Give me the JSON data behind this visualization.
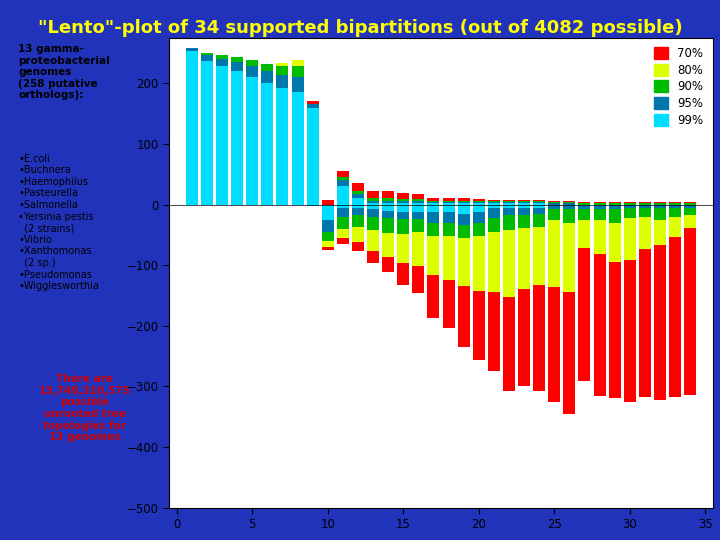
{
  "title": "\"Lento\"-plot of 34 supported bipartitions (out of 4082 possible)",
  "title_color": "#FFFF00",
  "title_fontsize": 13,
  "fig_bg_color": "#2233BB",
  "plot_bg_color": "#FFFFFF",
  "left_top_bg": "#44DDFF",
  "left_bottom_bg": "#FFEEAA",
  "legend_labels": [
    "70%",
    "80%",
    "90%",
    "95%",
    "99%"
  ],
  "legend_colors": [
    "#FF0000",
    "#DDFF00",
    "#00BB00",
    "#0077AA",
    "#00DDFF"
  ],
  "bar_width": 0.8,
  "n_bars": 34,
  "pos_data": [
    [
      0,
      0,
      0,
      5,
      253
    ],
    [
      0,
      0,
      3,
      10,
      237
    ],
    [
      0,
      0,
      6,
      12,
      228
    ],
    [
      0,
      0,
      8,
      15,
      220
    ],
    [
      0,
      0,
      10,
      18,
      210
    ],
    [
      0,
      0,
      12,
      20,
      200
    ],
    [
      0,
      5,
      15,
      22,
      192
    ],
    [
      0,
      10,
      18,
      25,
      185
    ],
    [
      5,
      0,
      0,
      5,
      160
    ],
    [
      8,
      0,
      0,
      0,
      0
    ],
    [
      10,
      0,
      5,
      10,
      30
    ],
    [
      12,
      0,
      5,
      8,
      10
    ],
    [
      12,
      0,
      5,
      3,
      3
    ],
    [
      12,
      0,
      5,
      3,
      3
    ],
    [
      10,
      0,
      3,
      3,
      3
    ],
    [
      8,
      0,
      3,
      3,
      3
    ],
    [
      5,
      0,
      2,
      2,
      2
    ],
    [
      5,
      0,
      2,
      2,
      2
    ],
    [
      4,
      0,
      2,
      2,
      2
    ],
    [
      3,
      0,
      2,
      2,
      2
    ],
    [
      2,
      0,
      2,
      2,
      2
    ],
    [
      2,
      0,
      2,
      2,
      2
    ],
    [
      2,
      0,
      2,
      2,
      2
    ],
    [
      2,
      0,
      2,
      2,
      2
    ],
    [
      2,
      0,
      2,
      2,
      0
    ],
    [
      2,
      0,
      2,
      2,
      0
    ],
    [
      2,
      0,
      2,
      0,
      0
    ],
    [
      2,
      0,
      2,
      0,
      0
    ],
    [
      2,
      0,
      2,
      0,
      0
    ],
    [
      2,
      0,
      2,
      0,
      0
    ],
    [
      2,
      0,
      2,
      0,
      0
    ],
    [
      2,
      0,
      2,
      0,
      0
    ],
    [
      2,
      0,
      2,
      0,
      0
    ],
    [
      2,
      0,
      2,
      0,
      0
    ]
  ],
  "neg_data": [
    [
      0,
      0,
      0,
      0,
      0
    ],
    [
      0,
      0,
      0,
      0,
      0
    ],
    [
      0,
      0,
      0,
      0,
      0
    ],
    [
      0,
      0,
      0,
      0,
      0
    ],
    [
      0,
      0,
      0,
      0,
      0
    ],
    [
      0,
      0,
      0,
      0,
      0
    ],
    [
      0,
      0,
      0,
      0,
      0
    ],
    [
      0,
      0,
      0,
      0,
      0
    ],
    [
      0,
      0,
      0,
      0,
      -3
    ],
    [
      -5,
      -10,
      -15,
      -20,
      -25
    ],
    [
      -10,
      -15,
      -20,
      -15,
      -5
    ],
    [
      -15,
      -25,
      -20,
      -12,
      -5
    ],
    [
      -20,
      -35,
      -22,
      -12,
      -8
    ],
    [
      -25,
      -40,
      -25,
      -12,
      -10
    ],
    [
      -35,
      -48,
      -25,
      -12,
      -12
    ],
    [
      -45,
      -55,
      -22,
      -12,
      -12
    ],
    [
      -70,
      -65,
      -22,
      -18,
      -12
    ],
    [
      -80,
      -72,
      -22,
      -18,
      -12
    ],
    [
      -100,
      -80,
      -22,
      -18,
      -15
    ],
    [
      -115,
      -90,
      -22,
      -18,
      -12
    ],
    [
      -130,
      -100,
      -22,
      -18,
      -5
    ],
    [
      -155,
      -110,
      -25,
      -12,
      -5
    ],
    [
      -160,
      -100,
      -22,
      -12,
      -5
    ],
    [
      -175,
      -95,
      -22,
      -10,
      -5
    ],
    [
      -190,
      -110,
      -18,
      -8,
      0
    ],
    [
      -200,
      -115,
      -22,
      -8,
      0
    ],
    [
      -220,
      -45,
      -18,
      -8,
      0
    ],
    [
      -235,
      -55,
      -18,
      -8,
      0
    ],
    [
      -225,
      -65,
      -22,
      -8,
      0
    ],
    [
      -235,
      -68,
      -18,
      -5,
      0
    ],
    [
      -245,
      -52,
      -16,
      -5,
      0
    ],
    [
      -255,
      -42,
      -20,
      -5,
      0
    ],
    [
      -265,
      -32,
      -16,
      -5,
      0
    ],
    [
      -275,
      -22,
      -12,
      -5,
      0
    ]
  ]
}
